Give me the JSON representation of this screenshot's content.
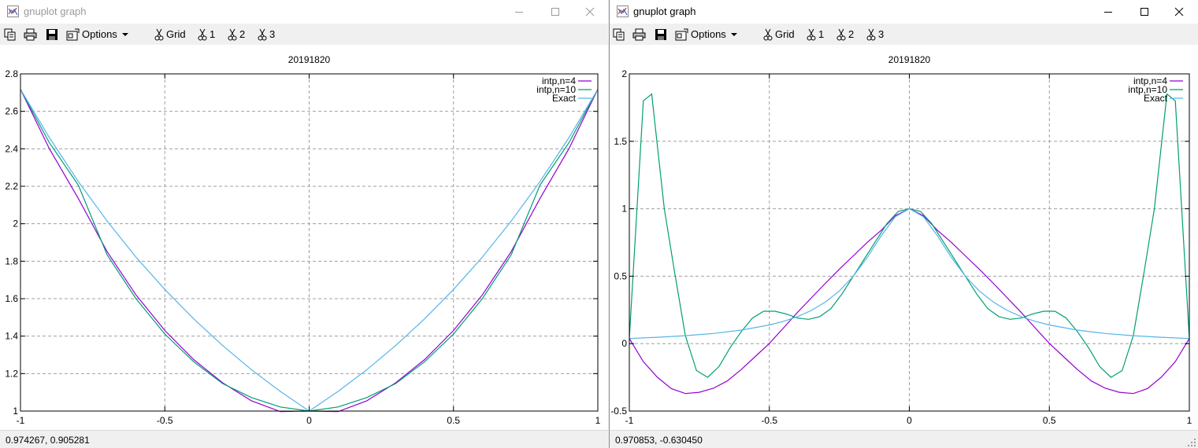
{
  "windows": [
    {
      "title": "gnuplot graph",
      "active": false,
      "toolbar": {
        "options_label": "Options",
        "grid_label": "Grid",
        "btn1_label": "1",
        "btn2_label": "2",
        "btn3_label": "3"
      },
      "status": "0.974267,  0.905281",
      "chart_data": {
        "type": "line",
        "title": "20191820",
        "xlim": [
          -1,
          1
        ],
        "ylim": [
          1,
          2.8
        ],
        "xticks": [
          "-1",
          "-0.5",
          "0",
          "0.5",
          "1"
        ],
        "xtick_values": [
          -1,
          -0.5,
          0,
          0.5,
          1
        ],
        "yticks": [
          "1",
          "1.2",
          "1.4",
          "1.6",
          "1.8",
          "2",
          "2.2",
          "2.4",
          "2.6",
          "2.8"
        ],
        "ytick_values": [
          1,
          1.2,
          1.4,
          1.6,
          1.8,
          2,
          2.2,
          2.4,
          2.6,
          2.8
        ],
        "grid": true,
        "legend": "top-right",
        "series": [
          {
            "name": "intp,n=4",
            "color": "#9400d3",
            "x": [
              -1,
              -0.9,
              -0.8,
              -0.7,
              -0.6,
              -0.5,
              -0.4,
              -0.3,
              -0.2,
              -0.1,
              0,
              0.1,
              0.2,
              0.3,
              0.4,
              0.5,
              0.6,
              0.7,
              0.8,
              0.9,
              1
            ],
            "y": [
              2.718,
              2.401,
              2.136,
              1.851,
              1.62,
              1.43,
              1.275,
              1.151,
              1.055,
              0.997,
              1.0,
              0.997,
              1.055,
              1.151,
              1.275,
              1.43,
              1.62,
              1.851,
              2.136,
              2.401,
              2.718
            ]
          },
          {
            "name": "intp,n=10",
            "color": "#009e73",
            "x": [
              -1,
              -0.9,
              -0.8,
              -0.7,
              -0.6,
              -0.5,
              -0.4,
              -0.3,
              -0.2,
              -0.1,
              0,
              0.1,
              0.2,
              0.3,
              0.4,
              0.5,
              0.6,
              0.7,
              0.8,
              0.9,
              1
            ],
            "y": [
              2.718,
              2.433,
              2.207,
              1.834,
              1.6,
              1.411,
              1.263,
              1.147,
              1.072,
              1.022,
              1.0,
              1.022,
              1.072,
              1.147,
              1.263,
              1.411,
              1.6,
              1.834,
              2.207,
              2.433,
              2.718
            ]
          },
          {
            "name": "Exact",
            "color": "#56b4e9",
            "x": [
              -1,
              -0.9,
              -0.8,
              -0.7,
              -0.6,
              -0.5,
              -0.4,
              -0.3,
              -0.2,
              -0.1,
              0,
              0.1,
              0.2,
              0.3,
              0.4,
              0.5,
              0.6,
              0.7,
              0.8,
              0.9,
              1
            ],
            "y": [
              2.718,
              2.46,
              2.226,
              2.014,
              1.822,
              1.649,
              1.492,
              1.35,
              1.221,
              1.105,
              1.0,
              1.105,
              1.221,
              1.35,
              1.492,
              1.649,
              1.822,
              2.014,
              2.226,
              2.46,
              2.718
            ]
          }
        ]
      }
    },
    {
      "title": "gnuplot graph",
      "active": true,
      "toolbar": {
        "options_label": "Options",
        "grid_label": "Grid",
        "btn1_label": "1",
        "btn2_label": "2",
        "btn3_label": "3"
      },
      "status": "0.970853, -0.630450",
      "chart_data": {
        "type": "line",
        "title": "20191820",
        "xlim": [
          -1,
          1
        ],
        "ylim": [
          -0.5,
          2
        ],
        "xticks": [
          "-1",
          "-0.5",
          "0",
          "0.5",
          "1"
        ],
        "xtick_values": [
          -1,
          -0.5,
          0,
          0.5,
          1
        ],
        "yticks": [
          "-0.5",
          "0",
          "0.5",
          "1",
          "1.5",
          "2"
        ],
        "ytick_values": [
          -0.5,
          0,
          0.5,
          1,
          1.5,
          2
        ],
        "grid": true,
        "legend": "top-right",
        "series": [
          {
            "name": "intp,n=4",
            "color": "#9400d3",
            "x": [
              -1,
              -0.95,
              -0.9,
              -0.85,
              -0.8,
              -0.75,
              -0.7,
              -0.65,
              -0.6,
              -0.55,
              -0.5,
              -0.45,
              -0.4,
              -0.35,
              -0.3,
              -0.25,
              -0.2,
              -0.15,
              -0.1,
              -0.05,
              0,
              0.05,
              0.1,
              0.15,
              0.2,
              0.25,
              0.3,
              0.35,
              0.4,
              0.45,
              0.5,
              0.55,
              0.6,
              0.65,
              0.7,
              0.75,
              0.8,
              0.85,
              0.9,
              0.95,
              1
            ],
            "y": [
              0.038,
              -0.134,
              -0.249,
              -0.334,
              -0.37,
              -0.361,
              -0.331,
              -0.277,
              -0.192,
              -0.095,
              0.002,
              0.115,
              0.23,
              0.339,
              0.447,
              0.551,
              0.651,
              0.751,
              0.841,
              0.949,
              1.0,
              0.949,
              0.841,
              0.751,
              0.651,
              0.551,
              0.447,
              0.339,
              0.23,
              0.115,
              0.002,
              -0.095,
              -0.192,
              -0.277,
              -0.331,
              -0.361,
              -0.37,
              -0.334,
              -0.249,
              -0.134,
              0.038
            ]
          },
          {
            "name": "intp,n=10",
            "color": "#009e73",
            "x": [
              -1,
              -0.95,
              -0.92,
              -0.875,
              -0.84,
              -0.8,
              -0.76,
              -0.72,
              -0.68,
              -0.64,
              -0.6,
              -0.56,
              -0.52,
              -0.48,
              -0.44,
              -0.4,
              -0.36,
              -0.32,
              -0.28,
              -0.24,
              -0.2,
              -0.16,
              -0.12,
              -0.08,
              -0.04,
              0,
              0.04,
              0.08,
              0.12,
              0.16,
              0.2,
              0.24,
              0.28,
              0.32,
              0.36,
              0.4,
              0.44,
              0.48,
              0.52,
              0.56,
              0.6,
              0.64,
              0.68,
              0.72,
              0.76,
              0.8,
              0.84,
              0.875,
              0.92,
              0.95,
              1
            ],
            "y": [
              0.038,
              1.8,
              1.85,
              1.0,
              0.55,
              0.06,
              -0.2,
              -0.25,
              -0.17,
              -0.03,
              0.09,
              0.19,
              0.24,
              0.24,
              0.22,
              0.19,
              0.18,
              0.2,
              0.26,
              0.37,
              0.5,
              0.63,
              0.76,
              0.89,
              0.98,
              1.0,
              0.98,
              0.89,
              0.76,
              0.63,
              0.5,
              0.37,
              0.26,
              0.2,
              0.18,
              0.19,
              0.22,
              0.24,
              0.24,
              0.19,
              0.09,
              -0.03,
              -0.17,
              -0.25,
              -0.2,
              0.06,
              0.55,
              1.0,
              1.85,
              1.8,
              0.038
            ]
          },
          {
            "name": "Exact",
            "color": "#56b4e9",
            "x": [
              -1,
              -0.9,
              -0.8,
              -0.7,
              -0.6,
              -0.5,
              -0.45,
              -0.4,
              -0.35,
              -0.3,
              -0.25,
              -0.2,
              -0.15,
              -0.1,
              -0.05,
              0,
              0.05,
              0.1,
              0.15,
              0.2,
              0.25,
              0.3,
              0.35,
              0.4,
              0.45,
              0.5,
              0.6,
              0.7,
              0.8,
              0.9,
              1
            ],
            "y": [
              0.038,
              0.047,
              0.059,
              0.075,
              0.1,
              0.138,
              0.165,
              0.2,
              0.246,
              0.308,
              0.39,
              0.5,
              0.64,
              0.8,
              0.941,
              1.0,
              0.941,
              0.8,
              0.64,
              0.5,
              0.39,
              0.308,
              0.246,
              0.2,
              0.165,
              0.138,
              0.1,
              0.075,
              0.059,
              0.047,
              0.038
            ]
          }
        ]
      }
    }
  ]
}
